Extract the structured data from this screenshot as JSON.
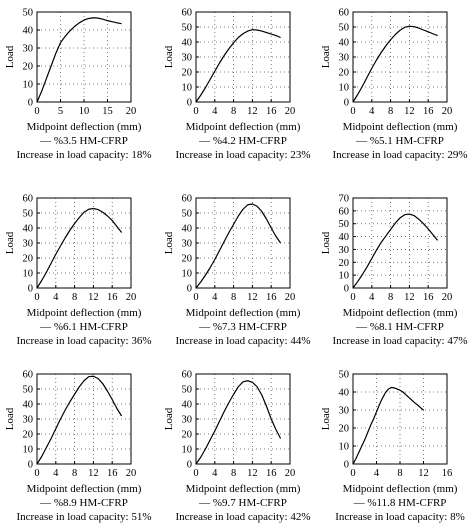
{
  "chart_data": [
    {
      "type": "line",
      "xlabel": "Midpoint deflection (mm)",
      "ylabel": "Load",
      "xlim": [
        0,
        20
      ],
      "ylim": [
        0,
        50
      ],
      "xticks": [
        "0",
        "5",
        "10",
        "15",
        "20"
      ],
      "yticks": [
        "0",
        "10",
        "20",
        "30",
        "40",
        "50"
      ],
      "grid": "dotted",
      "legend": "— %3.5 HM-CFRP",
      "caption": "Increase in load capacity: 18%",
      "series": [
        {
          "name": "%3.5 HM-CFRP",
          "x": [
            0,
            1,
            2,
            3,
            4,
            5,
            6,
            7,
            8,
            9,
            10,
            11,
            12,
            13,
            14,
            15,
            16,
            17,
            18
          ],
          "y": [
            0,
            6,
            13,
            20,
            27,
            33,
            36.5,
            39.5,
            42,
            44,
            45.5,
            46.4,
            46.8,
            46.6,
            46,
            45.2,
            44.6,
            44,
            43.5
          ]
        }
      ]
    },
    {
      "type": "line",
      "xlabel": "Midpoint deflection (mm)",
      "ylabel": "Load",
      "xlim": [
        0,
        20
      ],
      "ylim": [
        0,
        60
      ],
      "xticks": [
        "0",
        "4",
        "8",
        "12",
        "16",
        "20"
      ],
      "yticks": [
        "0",
        "10",
        "20",
        "30",
        "40",
        "50",
        "60"
      ],
      "grid": "dotted",
      "legend": "— %4.2 HM-CFRP",
      "caption": "Increase in load capacity: 23%",
      "series": [
        {
          "name": "%4.2 HM-CFRP",
          "x": [
            0,
            1,
            2,
            3,
            4,
            5,
            6,
            7,
            8,
            9,
            10,
            11,
            12,
            13,
            14,
            15,
            16,
            17,
            18
          ],
          "y": [
            0,
            4.5,
            9.5,
            15,
            20.5,
            26,
            31,
            35.5,
            39.5,
            43,
            45.5,
            47.3,
            48.2,
            48,
            47.3,
            46.3,
            45.3,
            44.3,
            43
          ]
        }
      ]
    },
    {
      "type": "line",
      "xlabel": "Midpoint deflection (mm)",
      "ylabel": "Load",
      "xlim": [
        0,
        20
      ],
      "ylim": [
        0,
        60
      ],
      "xticks": [
        "0",
        "4",
        "8",
        "12",
        "16",
        "20"
      ],
      "yticks": [
        "0",
        "10",
        "20",
        "30",
        "40",
        "50",
        "60"
      ],
      "grid": "dotted",
      "legend": "— %5.1 HM-CFRP",
      "caption": "Increase in load capacity: 29%",
      "series": [
        {
          "name": "%5.1 HM-CFRP",
          "x": [
            0,
            1,
            2,
            3,
            4,
            5,
            6,
            7,
            8,
            9,
            10,
            11,
            12,
            13,
            14,
            15,
            16,
            17,
            18
          ],
          "y": [
            0,
            5,
            10.5,
            16.5,
            22.5,
            28,
            33,
            37.5,
            41.5,
            45,
            47.8,
            49.8,
            50.5,
            50.2,
            49.3,
            48,
            46.8,
            45.5,
            44.3
          ]
        }
      ]
    },
    {
      "type": "line",
      "xlabel": "Midpoint deflection (mm)",
      "ylabel": "Load",
      "xlim": [
        0,
        20
      ],
      "ylim": [
        0,
        60
      ],
      "xticks": [
        "0",
        "4",
        "8",
        "12",
        "16",
        "20"
      ],
      "yticks": [
        "0",
        "10",
        "20",
        "30",
        "40",
        "50",
        "60"
      ],
      "grid": "dotted",
      "legend": "— %6.1 HM-CFRP",
      "caption": "Increase in load capacity: 36%",
      "series": [
        {
          "name": "%6.1 HM-CFRP",
          "x": [
            0,
            1,
            2,
            3,
            4,
            5,
            6,
            7,
            8,
            9,
            10,
            11,
            12,
            13,
            14,
            15,
            16,
            17,
            18
          ],
          "y": [
            0,
            5,
            10.5,
            16.5,
            22.5,
            28,
            33.5,
            38.5,
            43,
            47,
            50.5,
            52.5,
            53,
            52.3,
            50.5,
            48,
            45,
            41,
            37
          ]
        }
      ]
    },
    {
      "type": "line",
      "xlabel": "Midpoint deflection (mm)",
      "ylabel": "Load",
      "xlim": [
        0,
        20
      ],
      "ylim": [
        0,
        60
      ],
      "xticks": [
        "0",
        "4",
        "8",
        "12",
        "16",
        "20"
      ],
      "yticks": [
        "0",
        "10",
        "20",
        "30",
        "40",
        "50",
        "60"
      ],
      "grid": "dotted",
      "legend": "— %7.3 HM-CFRP",
      "caption": "Increase in load capacity: 44%",
      "series": [
        {
          "name": "%7.3 HM-CFRP",
          "x": [
            0,
            1,
            2,
            3,
            4,
            5,
            6,
            7,
            8,
            9,
            10,
            11,
            12,
            13,
            14,
            15,
            16,
            17,
            18
          ],
          "y": [
            0,
            4,
            8.5,
            13.5,
            19,
            25,
            31,
            37,
            42.5,
            48,
            52.5,
            55.5,
            56,
            54.5,
            51,
            46,
            40,
            34.5,
            30
          ]
        }
      ]
    },
    {
      "type": "line",
      "xlabel": "Midpoint deflection (mm)",
      "ylabel": "Load",
      "xlim": [
        0,
        20
      ],
      "ylim": [
        0,
        70
      ],
      "xticks": [
        "0",
        "4",
        "8",
        "12",
        "16",
        "20"
      ],
      "yticks": [
        "0",
        "10",
        "20",
        "30",
        "40",
        "50",
        "60",
        "70"
      ],
      "grid": "dotted",
      "legend": "— %8.1 HM-CFRP",
      "caption": "Increase in load capacity: 47%",
      "series": [
        {
          "name": "%8.1 HM-CFRP",
          "x": [
            0,
            1,
            2,
            3,
            4,
            5,
            6,
            7,
            8,
            9,
            10,
            11,
            12,
            13,
            14,
            15,
            16,
            17,
            18
          ],
          "y": [
            0,
            5,
            10.5,
            16.5,
            23,
            29.5,
            35.5,
            40.5,
            45.5,
            50.5,
            54.5,
            57,
            57.5,
            56.3,
            53.5,
            50,
            46,
            41.5,
            37
          ]
        }
      ]
    },
    {
      "type": "line",
      "xlabel": "Midpoint deflection (mm)",
      "ylabel": "Load",
      "xlim": [
        0,
        20
      ],
      "ylim": [
        0,
        60
      ],
      "xticks": [
        "0",
        "4",
        "8",
        "12",
        "16",
        "20"
      ],
      "yticks": [
        "0",
        "10",
        "20",
        "30",
        "40",
        "50",
        "60"
      ],
      "grid": "dotted",
      "legend": "— %8.9 HM-CFRP",
      "caption": "Increase in load capacity: 51%",
      "series": [
        {
          "name": "%8.9 HM-CFRP",
          "x": [
            0,
            1,
            2,
            3,
            4,
            5,
            6,
            7,
            8,
            9,
            10,
            11,
            12,
            13,
            14,
            15,
            16,
            17,
            18
          ],
          "y": [
            0,
            5,
            11,
            17,
            23.5,
            30,
            36,
            41.5,
            46.5,
            51.5,
            55.5,
            58.2,
            58.5,
            57,
            53.5,
            48.5,
            43,
            37,
            32
          ]
        }
      ]
    },
    {
      "type": "line",
      "xlabel": "Midpoint deflection (mm)",
      "ylabel": "Load",
      "xlim": [
        0,
        20
      ],
      "ylim": [
        0,
        60
      ],
      "xticks": [
        "0",
        "4",
        "8",
        "12",
        "16",
        "20"
      ],
      "yticks": [
        "0",
        "10",
        "20",
        "30",
        "40",
        "50",
        "60"
      ],
      "grid": "dotted",
      "legend": "— %9.7 HM-CFRP",
      "caption": "Increase in load capacity: 42%",
      "series": [
        {
          "name": "%9.7 HM-CFRP",
          "x": [
            0,
            1,
            2,
            3,
            4,
            5,
            6,
            7,
            8,
            9,
            10,
            11,
            12,
            13,
            14,
            15,
            16,
            17,
            18
          ],
          "y": [
            0,
            4.5,
            10,
            16,
            22,
            28.5,
            35,
            41,
            46.5,
            51.5,
            54.8,
            55.5,
            54.5,
            51.5,
            46,
            38.5,
            30,
            23,
            17
          ]
        }
      ]
    },
    {
      "type": "line",
      "xlabel": "Midpoint deflection (mm)",
      "ylabel": "Load",
      "xlim": [
        0,
        16
      ],
      "ylim": [
        0,
        50
      ],
      "xticks": [
        "0",
        "4",
        "8",
        "12",
        "16"
      ],
      "yticks": [
        "0",
        "10",
        "20",
        "30",
        "40",
        "50"
      ],
      "grid": "dotted",
      "legend": "— %11.8 HM-CFRP",
      "caption": "Increase in load capacity: 8%",
      "series": [
        {
          "name": "%11.8 HM-CFRP",
          "x": [
            0,
            0.5,
            1,
            1.5,
            2,
            2.5,
            3,
            3.5,
            4,
            4.5,
            5,
            5.5,
            6,
            6.5,
            7,
            7.5,
            8,
            8.5,
            9,
            9.5,
            10,
            10.5,
            11,
            11.5,
            12
          ],
          "y": [
            0,
            3,
            6.5,
            10,
            13.5,
            17.5,
            21.5,
            25,
            29,
            33,
            36.5,
            39.5,
            41.5,
            42.5,
            42.3,
            41.7,
            41,
            40,
            38.5,
            37,
            35.5,
            34,
            32.8,
            31.3,
            30
          ]
        }
      ]
    }
  ]
}
